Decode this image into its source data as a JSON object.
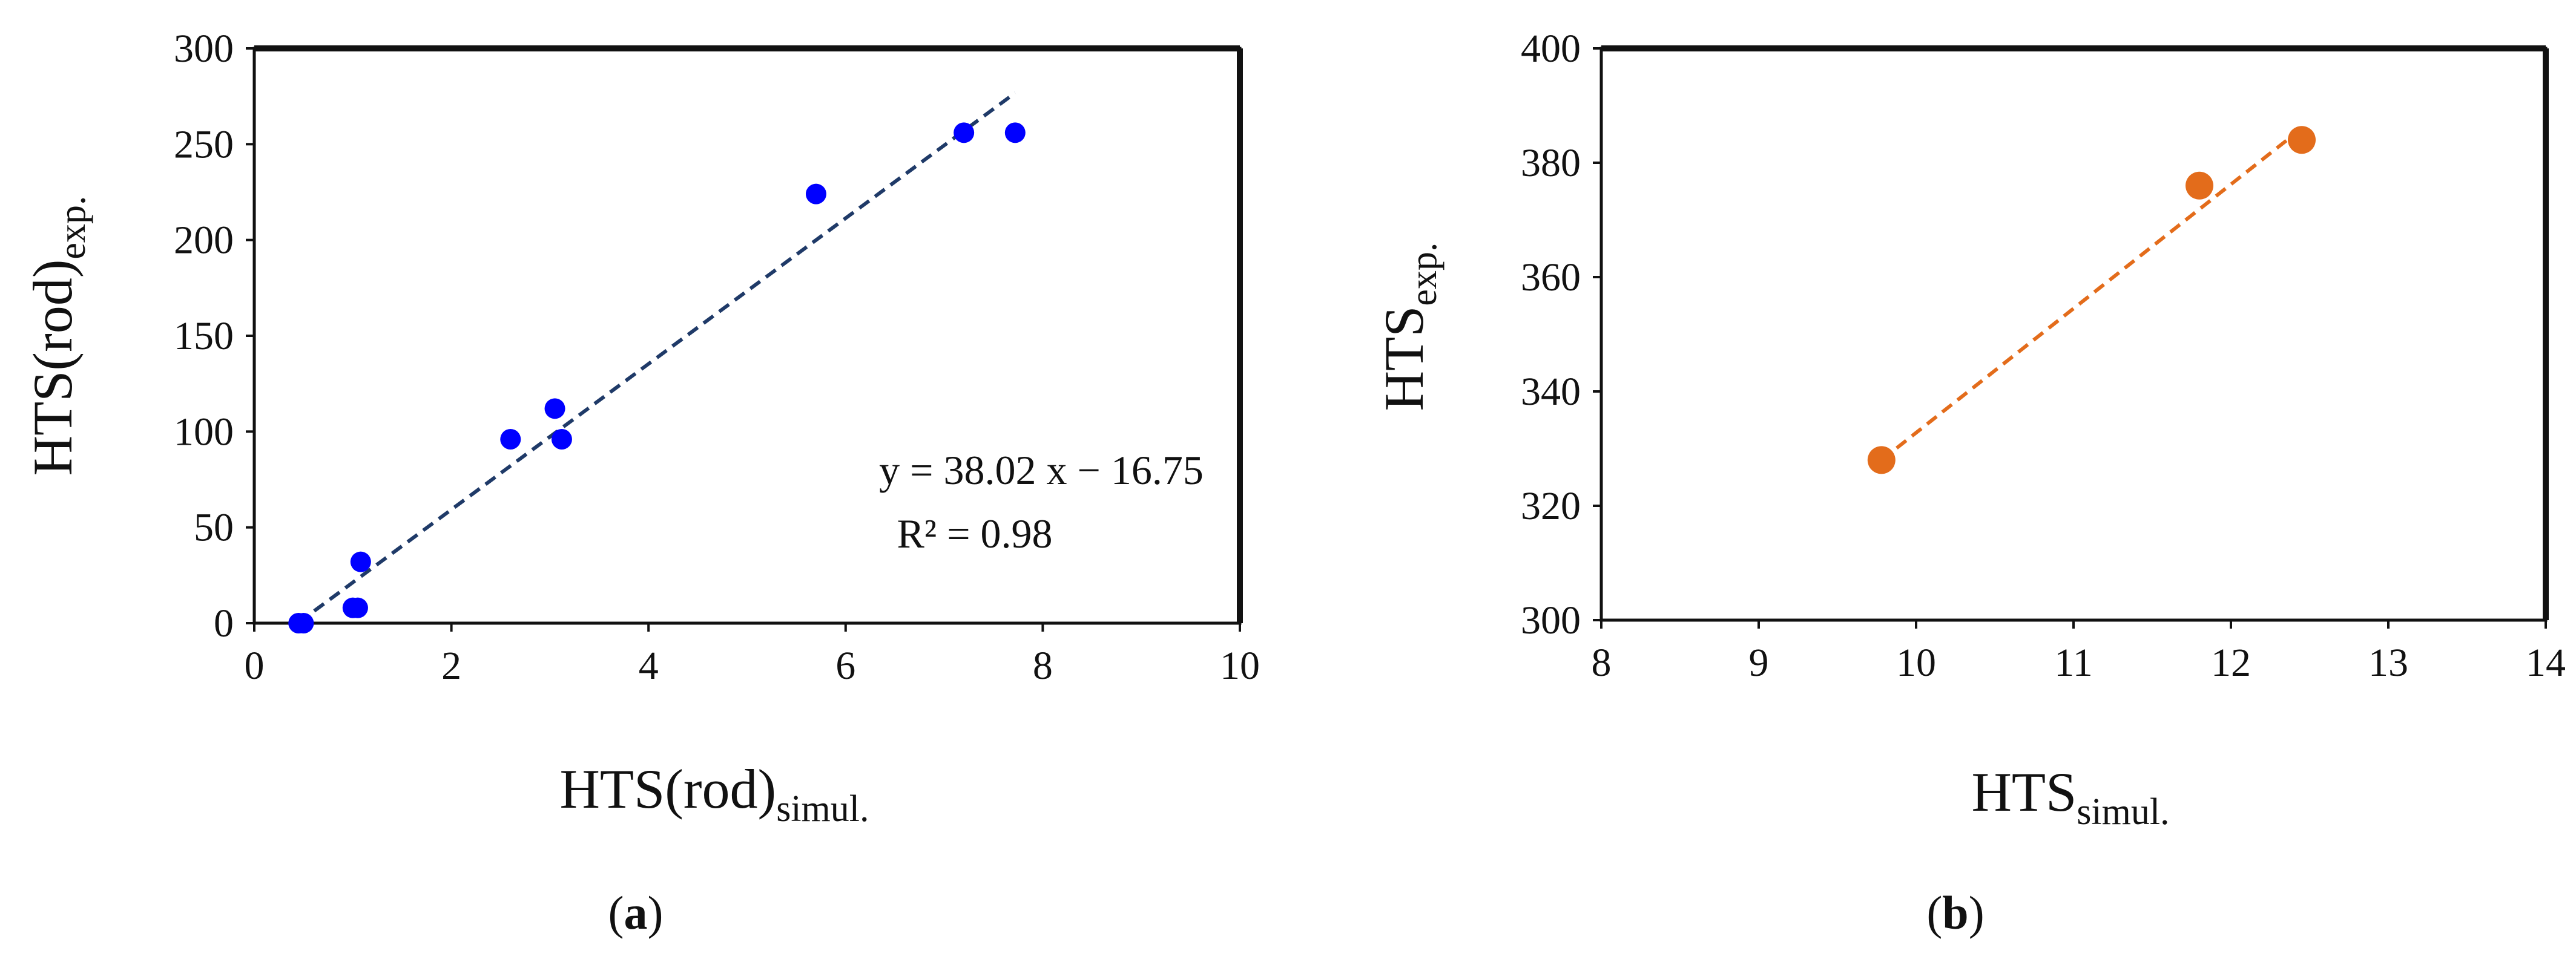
{
  "chart_data": [
    {
      "type": "scatter",
      "panel_label": "a",
      "xlabel": {
        "main": "HTS(rod)",
        "sub": "simul."
      },
      "ylabel": {
        "main": "HTS(rod)",
        "sub": "exp."
      },
      "xlim": [
        0,
        10
      ],
      "ylim": [
        0,
        300
      ],
      "xticks": [
        0,
        2,
        4,
        6,
        8,
        10
      ],
      "yticks": [
        0,
        50,
        100,
        150,
        200,
        250,
        300
      ],
      "grid": false,
      "series": [
        {
          "x": [
            0.45,
            0.5,
            1.0,
            1.05,
            1.08,
            2.6,
            3.05,
            3.12,
            5.7,
            7.2,
            7.72
          ],
          "y": [
            0,
            0,
            8,
            8,
            32,
            96,
            112,
            96,
            224,
            256,
            256
          ],
          "color": "#0000ff"
        }
      ],
      "trendline": {
        "slope": 38.02,
        "intercept": -16.75,
        "x_range": [
          0.45,
          7.72
        ],
        "color": "#1f3a68",
        "style": "dashed"
      },
      "annotations": [
        "y = 38.02 x − 16.75",
        "R² = 0.98"
      ]
    },
    {
      "type": "scatter",
      "panel_label": "b",
      "xlabel": {
        "main": "HTS",
        "sub": "simul."
      },
      "ylabel": {
        "main": "HTS",
        "sub": "exp."
      },
      "xlim": [
        8,
        14
      ],
      "ylim": [
        300,
        400
      ],
      "xticks": [
        8,
        9,
        10,
        11,
        12,
        13,
        14
      ],
      "yticks": [
        300,
        320,
        340,
        360,
        380,
        400
      ],
      "grid": false,
      "series": [
        {
          "x": [
            9.78,
            11.8,
            12.45
          ],
          "y": [
            328,
            376,
            384
          ],
          "color": "#e36c1b"
        }
      ],
      "trendline": {
        "points": [
          [
            9.78,
            328
          ],
          [
            12.45,
            386
          ]
        ],
        "color": "#e36c1b",
        "style": "dashed"
      }
    }
  ]
}
